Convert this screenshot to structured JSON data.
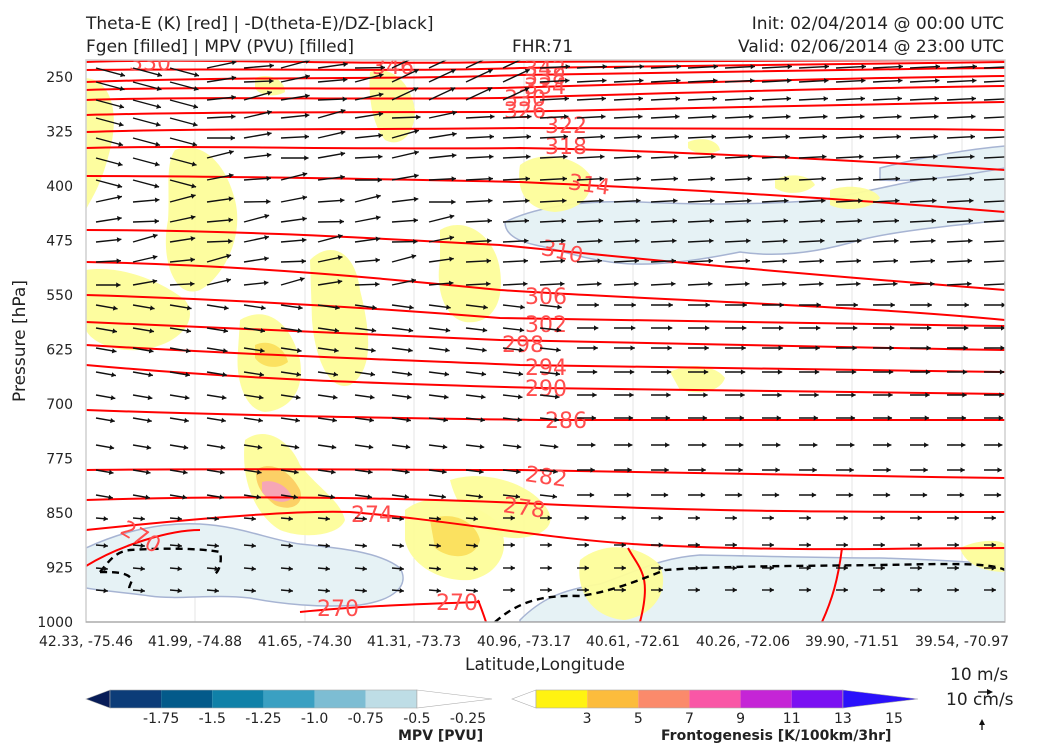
{
  "header": {
    "title_line1": "Theta-E (K) [red] | -D(theta-E)/DZ-[black]",
    "title_line2": "Fgen [filled] | MPV (PVU) [filled]",
    "fhr": "FHR:71",
    "init": "Init: 02/04/2014 @ 00:00 UTC",
    "valid": "Valid: 02/06/2014 @ 23:00 UTC"
  },
  "chart_data": {
    "type": "cross-section",
    "ylabel": "Pressure [hPa]",
    "xlabel": "Latitude,Longitude",
    "ylim": [
      1000,
      200
    ],
    "yticks": [
      250,
      325,
      400,
      475,
      550,
      625,
      700,
      775,
      850,
      925,
      1000
    ],
    "xticks": [
      "42.33, -75.46",
      "41.99, -74.88",
      "41.65, -74.30",
      "41.31, -73.73",
      "40.96, -73.17",
      "40.61, -72.61",
      "40.26, -72.06",
      "39.90, -71.51",
      "39.54, -70.97"
    ],
    "theta_e_labels": [
      "330",
      "346",
      "342",
      "338",
      "334",
      "330",
      "326",
      "322",
      "318",
      "314",
      "310",
      "306",
      "302",
      "298",
      "294",
      "290",
      "286",
      "282",
      "278",
      "274",
      "270",
      "270",
      "270"
    ],
    "colors": {
      "theta_e": "#ff0000",
      "arrows": "#111111",
      "mpv_fill": "#e6f2f5",
      "mpv_edge": "#a7b4d3",
      "fgen_fill": "#fdfd9a"
    }
  },
  "colorbars": {
    "mpv": {
      "title": "MPV [PVU]",
      "ticks": [
        "-1.75",
        "-1.5",
        "-1.25",
        "-1.0",
        "-0.75",
        "-0.5",
        "-0.25"
      ],
      "colors": [
        "#081d58",
        "#0c3c78",
        "#035a8a",
        "#1081a8",
        "#3aa0c2",
        "#7dbdd3",
        "#bedde6",
        "#ffffff"
      ]
    },
    "fgen": {
      "title": "Frontogenesis [K/100km/3hr]",
      "ticks": [
        "3",
        "5",
        "7",
        "9",
        "11",
        "13",
        "15"
      ],
      "colors": [
        "#ffffff",
        "#fff311",
        "#fcbc3c",
        "#fb8a6b",
        "#f957a6",
        "#c525d6",
        "#7a11f2",
        "#2a11fb"
      ]
    }
  },
  "vector_scale": {
    "horizontal": "10 m/s",
    "vertical": "10 cm/s"
  }
}
